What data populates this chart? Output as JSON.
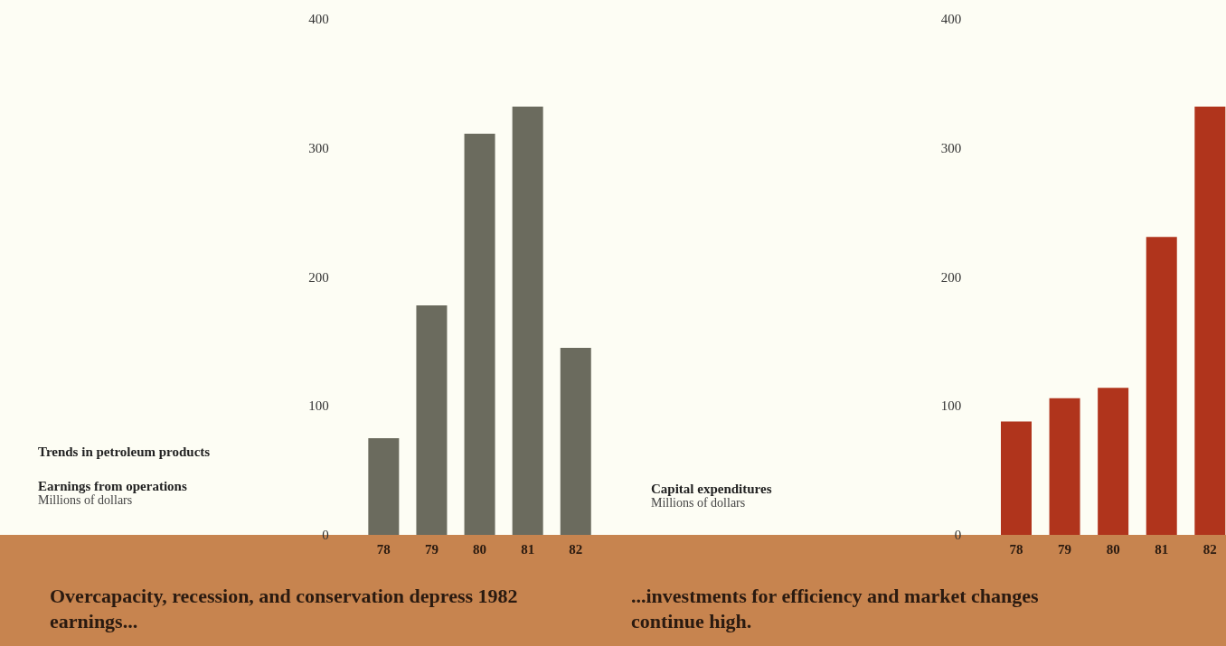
{
  "chart_data": [
    {
      "type": "bar",
      "ylabel": "Millions of dollars",
      "categories": [
        "78",
        "79",
        "80",
        "81",
        "82"
      ],
      "values": [
        75,
        178,
        311,
        332,
        145
      ],
      "color": "#6b6b5e",
      "ylim": [
        0,
        400
      ],
      "yticks": [
        0,
        100,
        200,
        300,
        400
      ],
      "annotations": [
        "Trends in petroleum products",
        "Earnings from operations",
        "Overcapacity, recession, and conservation depress 1982 earnings..."
      ]
    },
    {
      "type": "bar",
      "ylabel": "Millions of dollars",
      "categories": [
        "78",
        "79",
        "80",
        "81",
        "82"
      ],
      "values": [
        88,
        106,
        114,
        231,
        332
      ],
      "color": "#b0341c",
      "ylim": [
        0,
        400
      ],
      "yticks": [
        0,
        100,
        200,
        300,
        400
      ],
      "annotations": [
        "Capital expenditures",
        "...investments for efficiency and market changes continue high."
      ]
    }
  ]
}
